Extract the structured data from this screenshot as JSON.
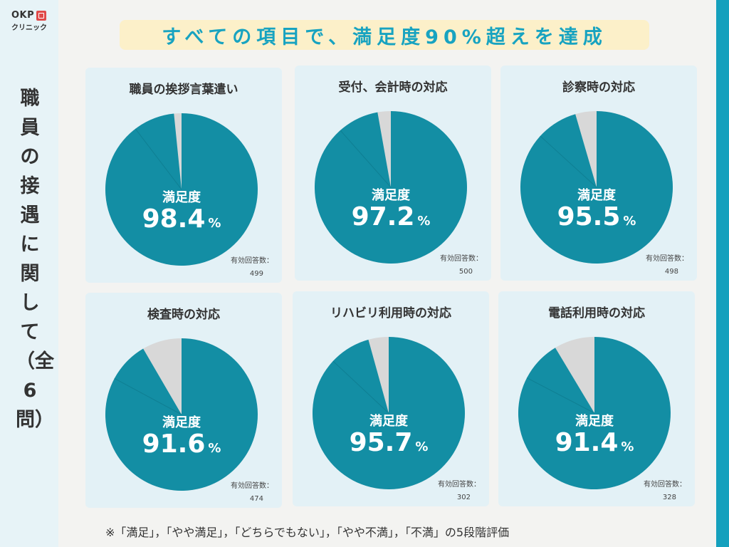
{
  "logo": {
    "name": "OKP",
    "sub": "クリニック"
  },
  "sidebar_title": "職員の接遇に関して（全6問）",
  "banner": "すべての項目で、満足度90%超えを達成",
  "label_satisfaction": "満足度",
  "label_unit": "%",
  "label_responses": "有効回答数：",
  "footnote": "※「満足」，「やや満足」，「どちらでもない」，「やや不満」，「不満」の5段階評価",
  "colors": {
    "accent": "#138ea4",
    "rest": "#d8d8d8",
    "banner_text": "#18a3c0",
    "banner_bg": "#fcf0c9",
    "card": "#e3f1f6"
  },
  "chart_data": [
    {
      "type": "pie",
      "title": "職員の挨拶言葉遣い",
      "value": 98.4,
      "value_text": "98.4",
      "responses": "499"
    },
    {
      "type": "pie",
      "title": "受付、会計時の対応",
      "value": 97.2,
      "value_text": "97.2",
      "responses": "500"
    },
    {
      "type": "pie",
      "title": "診察時の対応",
      "value": 95.5,
      "value_text": "95.5",
      "responses": "498"
    },
    {
      "type": "pie",
      "title": "検査時の対応",
      "value": 91.6,
      "value_text": "91.6",
      "responses": "474"
    },
    {
      "type": "pie",
      "title": "リハビリ利用時の対応",
      "value": 95.7,
      "value_text": "95.7",
      "responses": "302"
    },
    {
      "type": "pie",
      "title": "電話利用時の対応",
      "value": 91.4,
      "value_text": "91.4",
      "responses": "328"
    }
  ]
}
